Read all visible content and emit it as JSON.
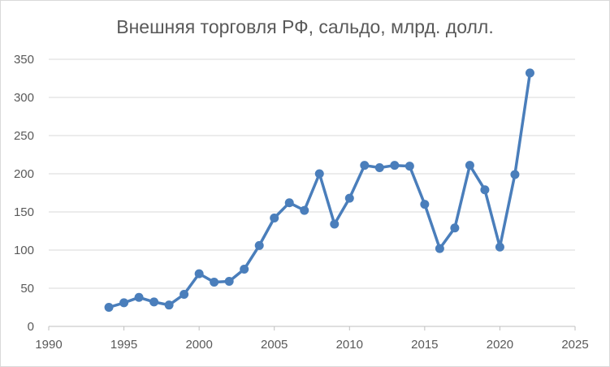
{
  "chart_data": {
    "type": "line",
    "title": "Внешняя торговля РФ, сальдо, млрд. долл.",
    "xlabel": "",
    "ylabel": "",
    "xlim": [
      1990,
      2025
    ],
    "ylim": [
      0,
      350
    ],
    "x_ticks": [
      "1990",
      "1995",
      "2000",
      "2005",
      "2010",
      "2015",
      "2020",
      "2025"
    ],
    "y_ticks": [
      "0",
      "50",
      "100",
      "150",
      "200",
      "250",
      "300",
      "350"
    ],
    "grid": true,
    "legend": "none",
    "series": [
      {
        "color": "#4a7ebb",
        "x": [
          1994,
          1995,
          1996,
          1997,
          1998,
          1999,
          2000,
          2001,
          2002,
          2003,
          2004,
          2005,
          2006,
          2007,
          2008,
          2009,
          2010,
          2011,
          2012,
          2013,
          2014,
          2015,
          2016,
          2017,
          2018,
          2019,
          2020,
          2021,
          2022
        ],
        "values": [
          25,
          31,
          38,
          32,
          28,
          42,
          69,
          58,
          59,
          75,
          106,
          142,
          162,
          152,
          200,
          134,
          168,
          211,
          208,
          211,
          210,
          160,
          102,
          129,
          211,
          179,
          104,
          199,
          332
        ]
      }
    ]
  }
}
